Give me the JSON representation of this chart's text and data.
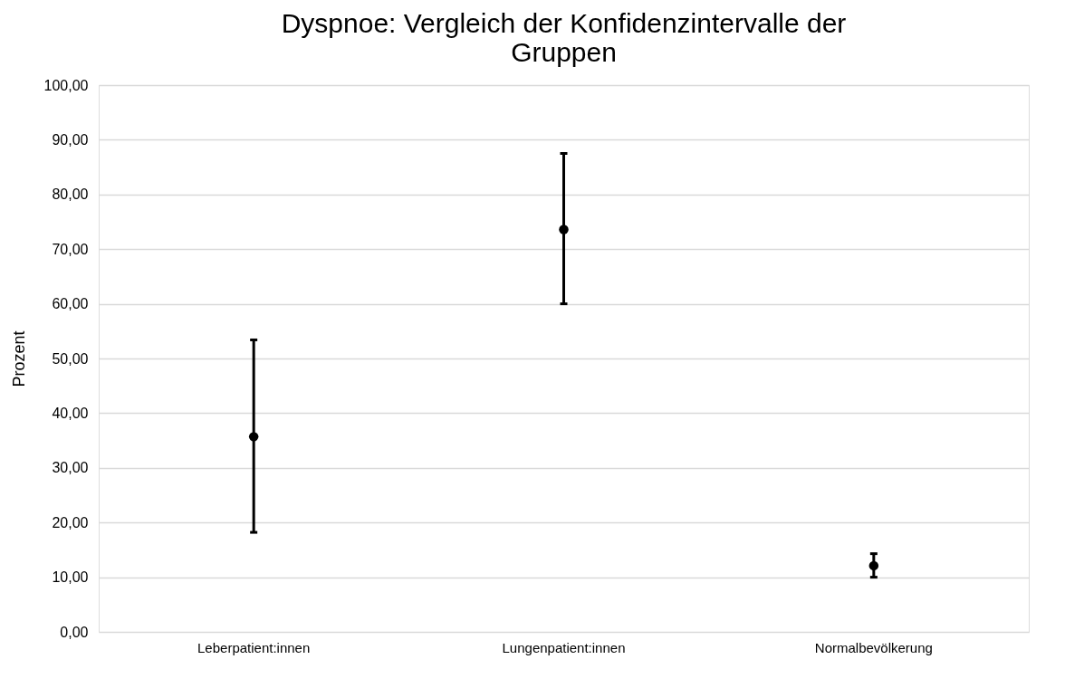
{
  "chart_data": {
    "type": "scatter",
    "title": "Dyspnoe: Vergleich der Konfidenzintervalle der Gruppen",
    "ylabel": "Prozent",
    "categories": [
      "Leberpatient:innen",
      "Lungenpatient:innen",
      "Normalbevölkerung"
    ],
    "series": [
      {
        "color": "#000000",
        "values": [
          35.7,
          73.6,
          12.1
        ],
        "errors": [
          [
            18.2,
            53.4
          ],
          [
            60.0,
            87.5
          ],
          [
            10.0,
            14.3
          ]
        ]
      }
    ],
    "ylim": [
      0,
      100
    ],
    "yticks": [
      {
        "value": 0,
        "label": "0,00"
      },
      {
        "value": 10,
        "label": "10,00"
      },
      {
        "value": 20,
        "label": "20,00"
      },
      {
        "value": 30,
        "label": "30,00"
      },
      {
        "value": 40,
        "label": "40,00"
      },
      {
        "value": 50,
        "label": "50,00"
      },
      {
        "value": 60,
        "label": "60,00"
      },
      {
        "value": 70,
        "label": "70,00"
      },
      {
        "value": 80,
        "label": "80,00"
      },
      {
        "value": 90,
        "label": "90,00"
      },
      {
        "value": 100,
        "label": "100,00"
      }
    ],
    "grid": "y",
    "marker": "circle",
    "legend": false
  }
}
